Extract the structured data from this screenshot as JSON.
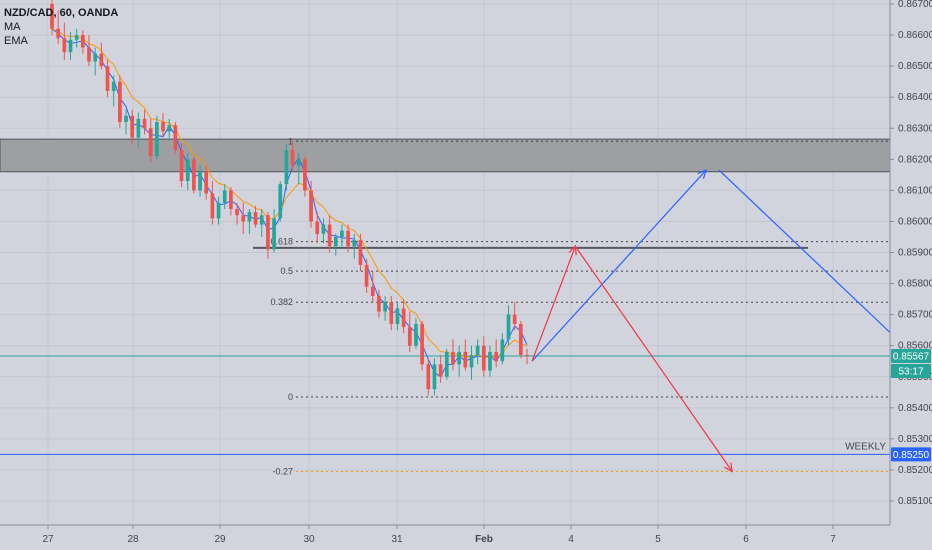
{
  "legend": {
    "title": "NZD/CAD, 60, OANDA",
    "indicators": [
      "MA",
      "EMA"
    ]
  },
  "chart_data": {
    "type": "candlestick",
    "instrument": "NZD/CAD",
    "timeframe": "60",
    "source": "OANDA",
    "y_axis": {
      "ticks": [
        "0.86700",
        "0.86600",
        "0.86500",
        "0.86400",
        "0.86300",
        "0.86200",
        "0.86100",
        "0.86000",
        "0.85900",
        "0.85800",
        "0.85700",
        "0.85600",
        "0.85500",
        "0.85400",
        "0.85300",
        "0.85200",
        "0.85100"
      ],
      "range": [
        0.85045,
        0.86718
      ]
    },
    "x_axis": {
      "ticks": [
        "27",
        "28",
        "29",
        "30",
        "31",
        "Feb",
        "4",
        "5",
        "6",
        "7"
      ]
    },
    "price_labels": [
      {
        "text": "0.85567",
        "color": "#26a69a"
      },
      {
        "text": "53:17",
        "color": "#26a69a"
      },
      {
        "text": "0.85250",
        "color": "#2962ff"
      }
    ],
    "horizontal_lines": [
      {
        "label": "WEEKLY",
        "value": 0.8525,
        "color": "#2962ff"
      },
      {
        "label": "",
        "value": 0.85567,
        "color": "#26a69a"
      }
    ],
    "zone": {
      "top": 0.86265,
      "bottom": 0.8616
    },
    "fib_levels": [
      {
        "label": "1",
        "value": 0.86258
      },
      {
        "label": "0.618",
        "value": 0.85935
      },
      {
        "label": "0.5",
        "value": 0.8584
      },
      {
        "label": "0.382",
        "value": 0.8574
      },
      {
        "label": "0",
        "value": 0.85435
      },
      {
        "label": "-0.27",
        "value": 0.85195
      }
    ],
    "support_line": 0.85915,
    "forecast_paths": [
      {
        "color": "#2962ff",
        "points": [
          [
            "Feb+0.55",
            0.8555
          ],
          [
            "5+0.55",
            0.86165
          ],
          [
            "5+0.70",
            0.86165
          ],
          [
            "7+0.70",
            0.8563
          ]
        ]
      },
      {
        "color": "#f23645",
        "points": [
          [
            "Feb+0.55",
            0.8555
          ],
          [
            "4+0.05",
            0.8592
          ],
          [
            "5+0.85",
            0.85195
          ]
        ]
      }
    ],
    "candles": [
      [
        0.867,
        0.8672,
        0.866,
        0.8662
      ],
      [
        0.8662,
        0.8668,
        0.8657,
        0.8659
      ],
      [
        0.8659,
        0.8664,
        0.8652,
        0.86545
      ],
      [
        0.86545,
        0.8661,
        0.8652,
        0.86585
      ],
      [
        0.86585,
        0.8662,
        0.8656,
        0.866
      ],
      [
        0.866,
        0.86615,
        0.8654,
        0.8656
      ],
      [
        0.8656,
        0.866,
        0.865,
        0.86515
      ],
      [
        0.86515,
        0.8656,
        0.8647,
        0.8654
      ],
      [
        0.8654,
        0.86575,
        0.8649,
        0.865
      ],
      [
        0.865,
        0.8652,
        0.864,
        0.8642
      ],
      [
        0.8642,
        0.8647,
        0.8637,
        0.8645
      ],
      [
        0.8645,
        0.8647,
        0.863,
        0.8632
      ],
      [
        0.8632,
        0.8636,
        0.8628,
        0.8634
      ],
      [
        0.8634,
        0.8636,
        0.8625,
        0.8627
      ],
      [
        0.8627,
        0.8635,
        0.8624,
        0.8633
      ],
      [
        0.8633,
        0.8636,
        0.8628,
        0.863
      ],
      [
        0.863,
        0.8633,
        0.8619,
        0.8621
      ],
      [
        0.8621,
        0.8634,
        0.862,
        0.8632
      ],
      [
        0.8632,
        0.8635,
        0.8627,
        0.8629
      ],
      [
        0.8629,
        0.8633,
        0.8626,
        0.8631
      ],
      [
        0.8631,
        0.8632,
        0.8622,
        0.8623
      ],
      [
        0.8623,
        0.8625,
        0.8611,
        0.8613
      ],
      [
        0.8613,
        0.8622,
        0.861,
        0.862
      ],
      [
        0.862,
        0.8621,
        0.8609,
        0.861
      ],
      [
        0.861,
        0.8618,
        0.8608,
        0.8616
      ],
      [
        0.8616,
        0.8618,
        0.8607,
        0.8609
      ],
      [
        0.8609,
        0.8613,
        0.8599,
        0.8601
      ],
      [
        0.8601,
        0.8608,
        0.8599,
        0.8606
      ],
      [
        0.8606,
        0.8612,
        0.8604,
        0.861
      ],
      [
        0.861,
        0.8611,
        0.8602,
        0.8604
      ],
      [
        0.8604,
        0.8606,
        0.8599,
        0.8602
      ],
      [
        0.8602,
        0.8606,
        0.8596,
        0.86
      ],
      [
        0.86,
        0.8604,
        0.8596,
        0.8603
      ],
      [
        0.8603,
        0.8605,
        0.8598,
        0.8599
      ],
      [
        0.8599,
        0.8604,
        0.8595,
        0.8602
      ],
      [
        0.8602,
        0.8603,
        0.8588,
        0.8591
      ],
      [
        0.8591,
        0.8604,
        0.859,
        0.8601
      ],
      [
        0.8601,
        0.8613,
        0.86,
        0.8612
      ],
      [
        0.8612,
        0.8625,
        0.861,
        0.8623
      ],
      [
        0.8623,
        0.8626,
        0.8616,
        0.8618
      ],
      [
        0.8618,
        0.8622,
        0.8612,
        0.862
      ],
      [
        0.862,
        0.8621,
        0.8608,
        0.861
      ],
      [
        0.861,
        0.8613,
        0.8598,
        0.86
      ],
      [
        0.86,
        0.8603,
        0.8593,
        0.8596
      ],
      [
        0.8596,
        0.8601,
        0.8593,
        0.8599
      ],
      [
        0.8599,
        0.8602,
        0.859,
        0.8592
      ],
      [
        0.8592,
        0.8596,
        0.8589,
        0.8595
      ],
      [
        0.8595,
        0.8599,
        0.8592,
        0.8597
      ],
      [
        0.8597,
        0.8599,
        0.859,
        0.8592
      ],
      [
        0.8592,
        0.8596,
        0.8588,
        0.8594
      ],
      [
        0.8594,
        0.8596,
        0.8584,
        0.8586
      ],
      [
        0.8586,
        0.8588,
        0.8577,
        0.8579
      ],
      [
        0.8579,
        0.8584,
        0.8574,
        0.8576
      ],
      [
        0.8576,
        0.8578,
        0.8569,
        0.8571
      ],
      [
        0.8571,
        0.8576,
        0.8568,
        0.8574
      ],
      [
        0.8574,
        0.8576,
        0.8565,
        0.8567
      ],
      [
        0.8567,
        0.8574,
        0.8565,
        0.8572
      ],
      [
        0.8572,
        0.8575,
        0.8564,
        0.8566
      ],
      [
        0.8566,
        0.8571,
        0.8558,
        0.856
      ],
      [
        0.856,
        0.8569,
        0.8559,
        0.8567
      ],
      [
        0.8567,
        0.8568,
        0.8552,
        0.8554
      ],
      [
        0.8554,
        0.8556,
        0.8544,
        0.8546
      ],
      [
        0.8546,
        0.8556,
        0.8544,
        0.8554
      ],
      [
        0.8554,
        0.8557,
        0.8548,
        0.855
      ],
      [
        0.855,
        0.8559,
        0.8549,
        0.8558
      ],
      [
        0.8558,
        0.8562,
        0.8552,
        0.8554
      ],
      [
        0.8554,
        0.856,
        0.855,
        0.8558
      ],
      [
        0.8558,
        0.8562,
        0.8552,
        0.8553
      ],
      [
        0.8553,
        0.856,
        0.8549,
        0.8557
      ],
      [
        0.8557,
        0.8562,
        0.8554,
        0.856
      ],
      [
        0.856,
        0.8563,
        0.855,
        0.8552
      ],
      [
        0.8552,
        0.856,
        0.855,
        0.8558
      ],
      [
        0.8558,
        0.8562,
        0.8553,
        0.8555
      ],
      [
        0.8555,
        0.8564,
        0.8554,
        0.8562
      ],
      [
        0.8562,
        0.8573,
        0.856,
        0.857
      ],
      [
        0.857,
        0.8574,
        0.8565,
        0.8567
      ],
      [
        0.8567,
        0.8568,
        0.8556,
        0.8557
      ],
      [
        0.8557,
        0.8559,
        0.8554,
        0.85567
      ]
    ]
  }
}
